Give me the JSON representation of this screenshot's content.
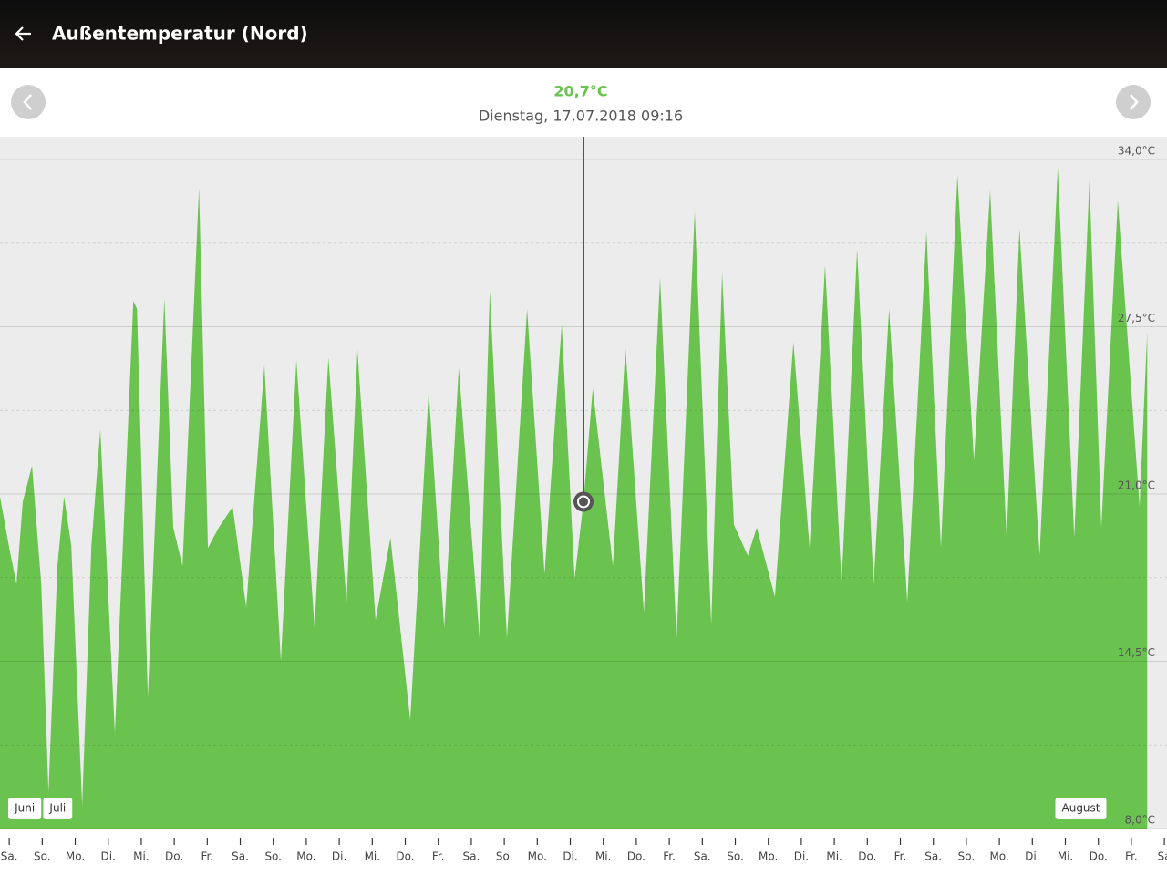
{
  "header": {
    "title": "Außentemperatur (Nord)"
  },
  "chart_data": {
    "type": "area",
    "selected": {
      "x": 17.4,
      "value": 20.7,
      "value_label": "20,7°C",
      "date": "Dienstag, 17.07.2018 09:16"
    },
    "series": [
      {
        "color": "#6ac24f",
        "x": [
          -0.28,
          0,
          0.22,
          0.41,
          0.69,
          0.97,
          1.19,
          1.46,
          1.66,
          1.88,
          2.21,
          2.49,
          2.76,
          3.2,
          3.76,
          3.87,
          4.2,
          4.7,
          4.97,
          5.25,
          5.75,
          6.02,
          6.35,
          6.77,
          7.18,
          7.73,
          8.23,
          8.7,
          9.25,
          9.67,
          10.22,
          10.55,
          11.1,
          11.55,
          12.15,
          12.71,
          13.18,
          13.62,
          14.25,
          14.56,
          15.08,
          15.69,
          16.22,
          16.74,
          17.13,
          17.4,
          17.68,
          18.29,
          18.67,
          19.23,
          19.72,
          20.22,
          20.77,
          21.27,
          21.6,
          21.96,
          22.38,
          22.65,
          23.2,
          23.76,
          24.25,
          24.72,
          25.22,
          25.69,
          26.19,
          26.66,
          27.21,
          27.79,
          28.23,
          28.73,
          29.23,
          29.72,
          30.22,
          30.61,
          31.22,
          31.77,
          32.27,
          32.73,
          33.09,
          33.59,
          34.25,
          34.48
        ],
        "values": [
          20.9,
          18.9,
          17.5,
          20.7,
          22.1,
          17.5,
          9.4,
          18.2,
          20.9,
          19,
          8.9,
          19,
          23.5,
          11.7,
          28.5,
          28.2,
          13.1,
          28.6,
          19.7,
          18.2,
          32.9,
          18.9,
          19.7,
          20.5,
          16.6,
          26,
          14.5,
          26.2,
          15.8,
          26.3,
          16.8,
          26.6,
          16.1,
          19.3,
          12.2,
          25,
          15.8,
          25.9,
          15.4,
          28.9,
          15.4,
          28.2,
          17.9,
          27.6,
          17.7,
          20.7,
          25.1,
          18.2,
          26.7,
          16.4,
          29.4,
          15.4,
          32,
          15.9,
          29.6,
          19.8,
          18.6,
          19.7,
          17,
          26.9,
          18.9,
          29.9,
          17.5,
          30.5,
          17.5,
          28.2,
          16.8,
          31.2,
          18.9,
          33.4,
          22.3,
          32.8,
          19.3,
          31.3,
          18.6,
          33.7,
          19.3,
          33.2,
          19.7,
          32.4,
          20.5,
          27.3
        ]
      }
    ],
    "xlim": [
      -0.28,
      35.08
    ],
    "xticks": [
      {
        "value": 0,
        "label": "Sa."
      },
      {
        "value": 1,
        "label": "So."
      },
      {
        "value": 2,
        "label": "Mo."
      },
      {
        "value": 3,
        "label": "Di."
      },
      {
        "value": 4,
        "label": "Mi."
      },
      {
        "value": 5,
        "label": "Do."
      },
      {
        "value": 6,
        "label": "Fr."
      },
      {
        "value": 7,
        "label": "Sa."
      },
      {
        "value": 8,
        "label": "So."
      },
      {
        "value": 9,
        "label": "Mo."
      },
      {
        "value": 10,
        "label": "Di."
      },
      {
        "value": 11,
        "label": "Mi."
      },
      {
        "value": 12,
        "label": "Do."
      },
      {
        "value": 13,
        "label": "Fr."
      },
      {
        "value": 14,
        "label": "Sa."
      },
      {
        "value": 15,
        "label": "So."
      },
      {
        "value": 16,
        "label": "Mo."
      },
      {
        "value": 17,
        "label": "Di."
      },
      {
        "value": 18,
        "label": "Mi."
      },
      {
        "value": 19,
        "label": "Do."
      },
      {
        "value": 20,
        "label": "Fr."
      },
      {
        "value": 21,
        "label": "Sa."
      },
      {
        "value": 22,
        "label": "So."
      },
      {
        "value": 23,
        "label": "Mo."
      },
      {
        "value": 24,
        "label": "Di."
      },
      {
        "value": 25,
        "label": "Mi."
      },
      {
        "value": 26,
        "label": "Do."
      },
      {
        "value": 27,
        "label": "Fr."
      },
      {
        "value": 28,
        "label": "Sa."
      },
      {
        "value": 29,
        "label": "So."
      },
      {
        "value": 30,
        "label": "Mo."
      },
      {
        "value": 31,
        "label": "Di."
      },
      {
        "value": 32,
        "label": "Mi."
      },
      {
        "value": 33,
        "label": "Do."
      },
      {
        "value": 34,
        "label": "Fr."
      },
      {
        "value": 35,
        "label": "Sa"
      }
    ],
    "month_labels": [
      {
        "x": 0,
        "label": "Juni"
      },
      {
        "x": 1,
        "label": "Juli"
      },
      {
        "x": 32,
        "label": "August"
      }
    ],
    "ylim": [
      8,
      34
    ],
    "yticks": [
      {
        "value": 34,
        "label": "34,0°C"
      },
      {
        "value": 27.5,
        "label": "27,5°C"
      },
      {
        "value": 21,
        "label": "21,0°C"
      },
      {
        "value": 14.5,
        "label": "14,5°C"
      },
      {
        "value": 8,
        "label": "8,0°C"
      }
    ],
    "minor_yticks": [
      30.75,
      24.25,
      17.75,
      11.25
    ],
    "grid": true
  }
}
